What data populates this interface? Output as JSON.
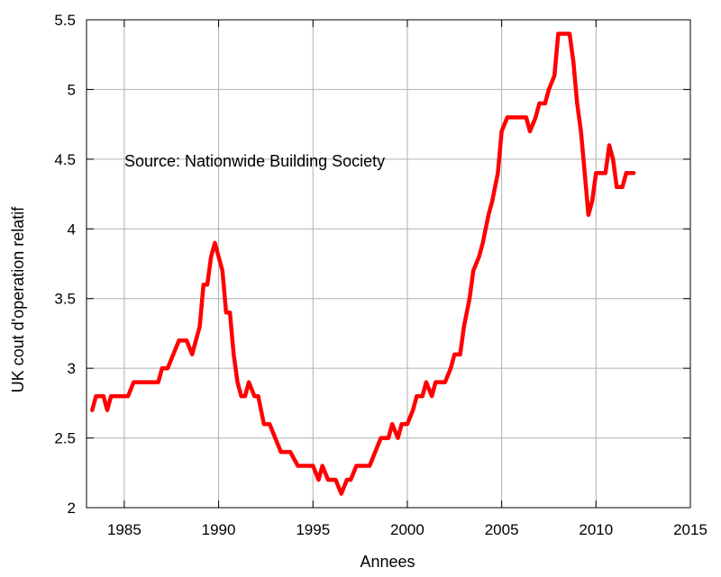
{
  "chart_data": {
    "type": "line",
    "title": "",
    "xlabel": "Annees",
    "ylabel": "UK cout d'operation relatif",
    "annotation": "Source: Nationwide Building Society",
    "xlim": [
      1983,
      2015
    ],
    "ylim": [
      2,
      5.5
    ],
    "xticks": [
      1985,
      1990,
      1995,
      2000,
      2005,
      2010,
      2015
    ],
    "yticks": [
      2,
      2.5,
      3,
      3.5,
      4,
      4.5,
      5,
      5.5
    ],
    "xtick_labels": [
      "1985",
      "1990",
      "1995",
      "2000",
      "2005",
      "2010",
      "2015"
    ],
    "ytick_labels": [
      "2",
      "2.5",
      "3",
      "3.5",
      "4",
      "4.5",
      "5",
      "5.5"
    ],
    "grid": true,
    "legend": "none",
    "series": [
      {
        "color": "#ff0000",
        "x": [
          1983.3,
          1983.5,
          1983.7,
          1983.9,
          1984.1,
          1984.3,
          1984.6,
          1985.0,
          1985.2,
          1985.5,
          1986.0,
          1986.5,
          1986.8,
          1987.0,
          1987.3,
          1987.6,
          1987.9,
          1988.1,
          1988.3,
          1988.6,
          1988.8,
          1989.0,
          1989.2,
          1989.4,
          1989.6,
          1989.8,
          1990.0,
          1990.2,
          1990.4,
          1990.6,
          1990.8,
          1991.0,
          1991.2,
          1991.4,
          1991.6,
          1991.9,
          1992.1,
          1992.4,
          1992.7,
          1993.0,
          1993.3,
          1993.5,
          1993.8,
          1994.2,
          1994.5,
          1994.8,
          1995.0,
          1995.3,
          1995.5,
          1995.8,
          1996.0,
          1996.2,
          1996.5,
          1996.8,
          1997.0,
          1997.3,
          1997.6,
          1998.0,
          1998.3,
          1998.6,
          1998.8,
          1999.0,
          1999.2,
          1999.5,
          1999.7,
          2000.0,
          2000.3,
          2000.5,
          2000.8,
          2001.0,
          2001.3,
          2001.5,
          2001.8,
          2002.0,
          2002.3,
          2002.5,
          2002.8,
          2003.0,
          2003.3,
          2003.5,
          2003.8,
          2004.0,
          2004.3,
          2004.5,
          2004.8,
          2005.0,
          2005.3,
          2005.5,
          2005.8,
          2006.0,
          2006.3,
          2006.5,
          2006.8,
          2007.0,
          2007.3,
          2007.5,
          2007.8,
          2008.0,
          2008.2,
          2008.4,
          2008.6,
          2008.8,
          2009.0,
          2009.2,
          2009.4,
          2009.6,
          2009.8,
          2010.0,
          2010.3,
          2010.5,
          2010.7,
          2010.9,
          2011.1,
          2011.4,
          2011.6,
          2011.8,
          2012.0
        ],
        "y": [
          2.7,
          2.8,
          2.8,
          2.8,
          2.7,
          2.8,
          2.8,
          2.8,
          2.8,
          2.9,
          2.9,
          2.9,
          2.9,
          3.0,
          3.0,
          3.1,
          3.2,
          3.2,
          3.2,
          3.1,
          3.2,
          3.3,
          3.6,
          3.6,
          3.8,
          3.9,
          3.8,
          3.7,
          3.4,
          3.4,
          3.1,
          2.9,
          2.8,
          2.8,
          2.9,
          2.8,
          2.8,
          2.6,
          2.6,
          2.5,
          2.4,
          2.4,
          2.4,
          2.3,
          2.3,
          2.3,
          2.3,
          2.2,
          2.3,
          2.2,
          2.2,
          2.2,
          2.1,
          2.2,
          2.2,
          2.3,
          2.3,
          2.3,
          2.4,
          2.5,
          2.5,
          2.5,
          2.6,
          2.5,
          2.6,
          2.6,
          2.7,
          2.8,
          2.8,
          2.9,
          2.8,
          2.9,
          2.9,
          2.9,
          3.0,
          3.1,
          3.1,
          3.3,
          3.5,
          3.7,
          3.8,
          3.9,
          4.1,
          4.2,
          4.4,
          4.7,
          4.8,
          4.8,
          4.8,
          4.8,
          4.8,
          4.7,
          4.8,
          4.9,
          4.9,
          5.0,
          5.1,
          5.4,
          5.4,
          5.4,
          5.4,
          5.2,
          4.9,
          4.7,
          4.4,
          4.1,
          4.2,
          4.4,
          4.4,
          4.4,
          4.6,
          4.5,
          4.3,
          4.3,
          4.4,
          4.4,
          4.4
        ]
      }
    ]
  }
}
